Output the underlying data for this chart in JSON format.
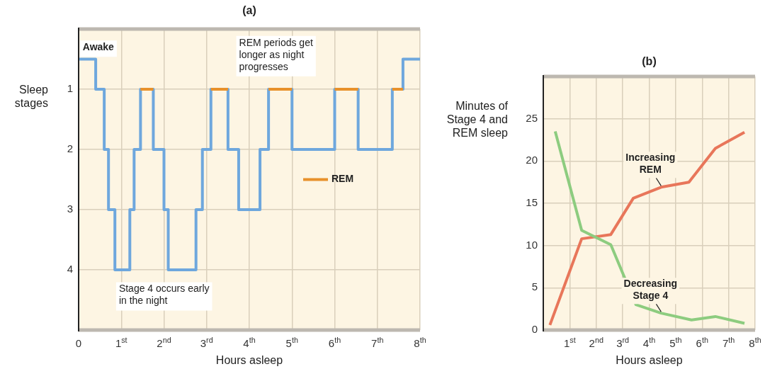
{
  "chart_data": [
    {
      "type": "step",
      "title": "(a)",
      "xlabel": "Hours asleep",
      "ylabel": "Sleep stages",
      "xlim": [
        0,
        8
      ],
      "xticks": [
        0,
        {
          "value": 1,
          "label": "1$^{st}$"
        },
        {
          "value": 2,
          "label": "2$^{nd}$"
        },
        {
          "value": 3,
          "label": "3$^{rd}$"
        },
        {
          "value": 4,
          "label": "4$^{th}$"
        },
        {
          "value": 5,
          "label": "5$^{th}$"
        },
        {
          "value": 6,
          "label": "6$^{th}$"
        },
        {
          "value": 7,
          "label": "7$^{th}$"
        },
        {
          "value": 8,
          "label": "8$^{th}$"
        }
      ],
      "ylim": [
        5,
        0
      ],
      "yticks": [
        1,
        2,
        3,
        4
      ],
      "grid": true,
      "legend": "right",
      "annotations": [
        "Awake",
        "REM periods get longer as night progresses",
        "Stage 4 occurs early in the night"
      ],
      "series": [
        {
          "color": "#6ea7dd",
          "x": [
            0,
            0.4,
            0.6,
            0.7,
            0.85,
            1.2,
            1.3,
            1.45,
            1.75,
            2,
            2.1,
            2.75,
            2.9,
            3.1,
            3.5,
            3.75,
            4.25,
            4.45,
            5,
            6,
            6.55,
            7.35,
            7.6,
            8
          ],
          "values": [
            0.5,
            1,
            2,
            3,
            4,
            3,
            2,
            1,
            2,
            3,
            4,
            3,
            2,
            1,
            2,
            3,
            2,
            1,
            2,
            1,
            2,
            1,
            0.5,
            0.5
          ]
        },
        {
          "name": "REM",
          "type": "line",
          "color": "#e8912b",
          "x": [
            1.45,
            1.75
          ],
          "values": [
            1,
            1
          ]
        },
        {
          "type": "line",
          "color": "#e8912b",
          "x": [
            3.1,
            3.5
          ],
          "values": [
            1,
            1
          ]
        },
        {
          "type": "line",
          "color": "#e8912b",
          "x": [
            4.45,
            5
          ],
          "values": [
            1,
            1
          ]
        },
        {
          "type": "line",
          "color": "#e8912b",
          "x": [
            6,
            6.55
          ],
          "values": [
            1,
            1
          ]
        },
        {
          "type": "line",
          "color": "#e8912b",
          "x": [
            7.35,
            7.6
          ],
          "values": [
            1,
            1
          ]
        }
      ]
    },
    {
      "type": "line",
      "title": "(b)",
      "xlabel": "Hours asleep",
      "ylabel": "Minutes of Stage 4 and REM sleep",
      "xlim": [
        0,
        8
      ],
      "xticks": [
        {
          "value": 1,
          "label": "1$^{st}$"
        },
        {
          "value": 2,
          "label": "2$^{nd}$"
        },
        {
          "value": 3,
          "label": "3$^{rd}$"
        },
        {
          "value": 4,
          "label": "4$^{th}$"
        },
        {
          "value": 5,
          "label": "5$^{th}$"
        },
        {
          "value": 6,
          "label": "6$^{th}$"
        },
        {
          "value": 7,
          "label": "7$^{th}$"
        },
        {
          "value": 8,
          "label": "8$^{th}$"
        }
      ],
      "ylim": [
        0,
        30
      ],
      "yticks": [
        0,
        5,
        10,
        15,
        20,
        25
      ],
      "grid": true,
      "series": [
        {
          "name": "Increasing REM",
          "color": "#e8765a",
          "x": [
            0.25,
            1.45,
            2.55,
            3.4,
            4.45,
            5.5,
            6.5,
            7.6
          ],
          "values": [
            0.6,
            10.8,
            11.3,
            15.6,
            16.9,
            17.5,
            21.5,
            23.4
          ]
        },
        {
          "name": "Decreasing Stage 4",
          "color": "#8dcc7f",
          "x": [
            0.45,
            1.45,
            2.55,
            3.5,
            4.45,
            5.6,
            6.5,
            7.6
          ],
          "values": [
            23.5,
            11.8,
            10.1,
            3.0,
            2.0,
            1.2,
            1.6,
            0.8
          ]
        }
      ]
    }
  ]
}
